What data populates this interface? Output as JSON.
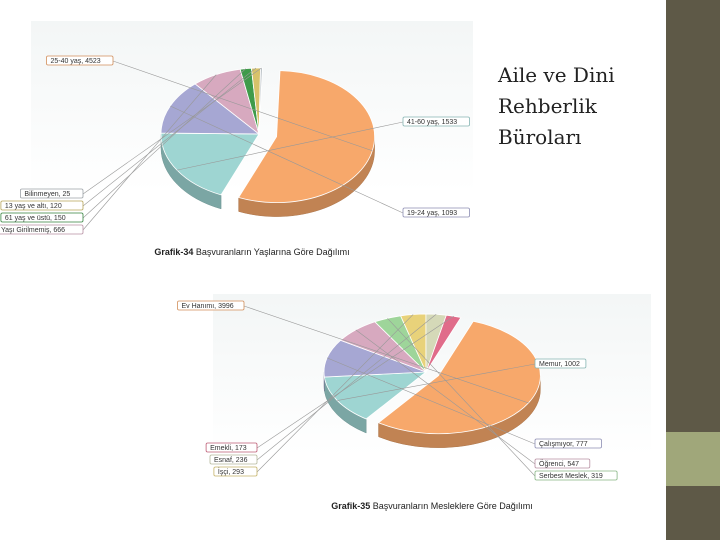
{
  "slide": {
    "title_lines": [
      "Aile ve Dini",
      "Rehberlik",
      "Büroları"
    ]
  },
  "chart_data": [
    {
      "type": "pie",
      "caption_prefix": "Grafik-34",
      "caption_text": " Başvuranların Yaşlarına Göre Dağılımı",
      "slices": [
        {
          "label": "25-40 yaş",
          "value": 4523,
          "color": "#f7a86b"
        },
        {
          "label": "41-60 yaş",
          "value": 1533,
          "color": "#9ed5d2"
        },
        {
          "label": "19-24 yaş",
          "value": 1093,
          "color": "#a6a7d3"
        },
        {
          "label": "Yaşı Girilmemiş",
          "value": 666,
          "color": "#d7a9bf"
        },
        {
          "label": "61 yaş ve üstü",
          "value": 150,
          "color": "#3f9b4a"
        },
        {
          "label": "13 yaş ve altı",
          "value": 120,
          "color": "#d7c26a"
        },
        {
          "label": "Bilinmeyen",
          "value": 25,
          "color": "#b7bfc4"
        }
      ],
      "label_texts": {
        "25-40 yaş": "25-40 yaş, 4523",
        "41-60 yaş": "41-60 yaş, 1533",
        "19-24 yaş": "19-24 yaş, 1093",
        "Yaşı Girilmemiş": "Yaşı Girilmemiş, 666",
        "61 yaş ve üstü": "61 yaş ve üstü, 150",
        "13 yaş ve altı": "13 yaş ve altı, 120",
        "Bilinmeyen": "Bilinmeyen, 25"
      }
    },
    {
      "type": "pie",
      "caption_prefix": "Grafik-35",
      "caption_text": " Başvuranların Mesleklere Göre Dağılımı",
      "slices": [
        {
          "label": "Ev Hanımı",
          "value": 3996,
          "color": "#f7a86b"
        },
        {
          "label": "Memur",
          "value": 1002,
          "color": "#9ed5d2"
        },
        {
          "label": "Çalışmıyor",
          "value": 777,
          "color": "#a6a7d3"
        },
        {
          "label": "Öğrenci",
          "value": 547,
          "color": "#d7a9bf"
        },
        {
          "label": "Serbest Meslek",
          "value": 319,
          "color": "#9ed59a"
        },
        {
          "label": "İşçi",
          "value": 293,
          "color": "#e8d27a"
        },
        {
          "label": "Esnaf",
          "value": 236,
          "color": "#d5d9b8"
        },
        {
          "label": "Emekli",
          "value": 173,
          "color": "#e06c8a"
        }
      ],
      "label_texts": {
        "Ev Hanımı": "Ev Hanımı, 3996",
        "Memur": "Memur, 1002",
        "Çalışmıyor": "Çalışmıyor, 777",
        "Öğrenci": "Öğrenci, 547",
        "Serbest Meslek": "Serbest Meslek, 319",
        "İşçi": "İşçi, 293",
        "Esnaf": "Esnaf, 236",
        "Emekli": "Emekli, 173"
      }
    }
  ]
}
